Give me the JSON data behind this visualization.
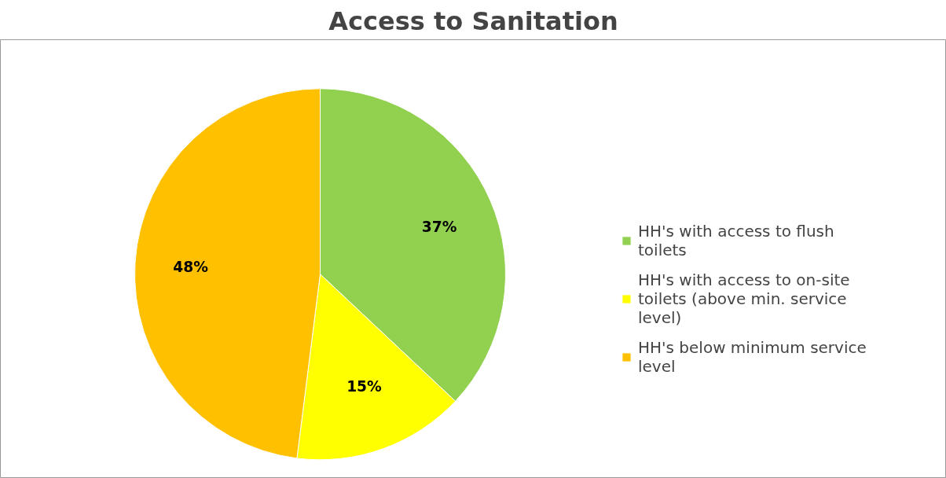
{
  "chart_data": {
    "type": "pie",
    "title": "Access to Sanitation",
    "categories": [
      "HH's with access to flush toilets",
      "HH's with access to on-site toilets (above min. service level)",
      "HH's below minimum service level"
    ],
    "values": [
      37,
      15,
      48
    ],
    "colors": [
      "#92d050",
      "#ffff00",
      "#ffc000"
    ],
    "value_labels": [
      "37%",
      "15%",
      "48%"
    ],
    "legend": "right"
  }
}
